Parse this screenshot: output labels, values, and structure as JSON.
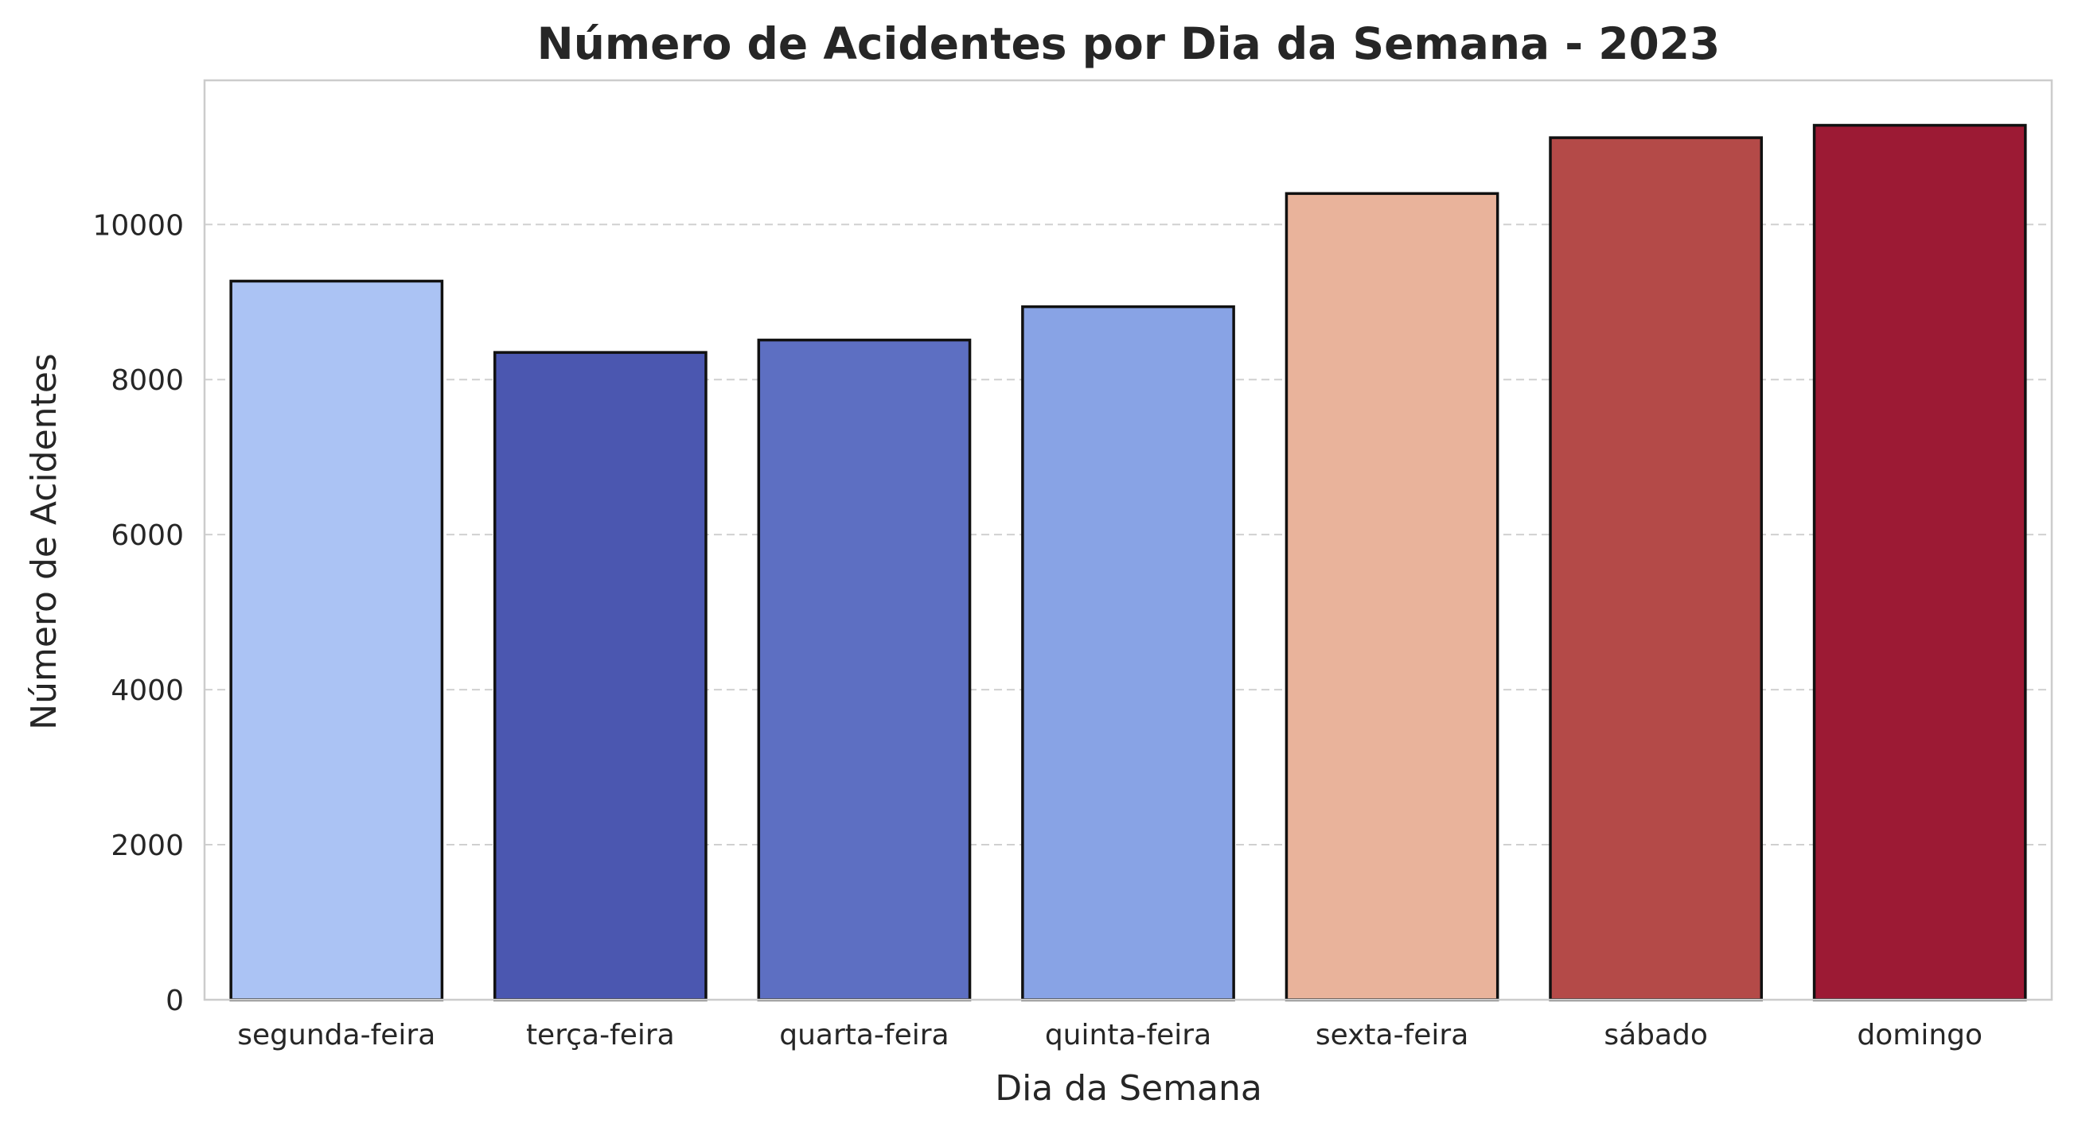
{
  "chart_data": {
    "type": "bar",
    "title": "Número de Acidentes por Dia da Semana - 2023",
    "xlabel": "Dia da Semana",
    "ylabel": "Número de Acidentes",
    "categories": [
      "segunda-feira",
      "terça-feira",
      "quarta-feira",
      "quinta-feira",
      "sexta-feira",
      "sábado",
      "domingo"
    ],
    "values": [
      9270,
      8350,
      8510,
      8940,
      10400,
      11120,
      11280
    ],
    "colors": [
      "#abc3f4",
      "#4b57b0",
      "#5d6fc2",
      "#88a3e5",
      "#e9b39b",
      "#b44a48",
      "#9c1a34"
    ],
    "ylim": [
      0,
      11860
    ],
    "yticks": [
      0,
      2000,
      4000,
      6000,
      8000,
      10000
    ],
    "grid": "horizontal dashed",
    "legend": "none"
  }
}
